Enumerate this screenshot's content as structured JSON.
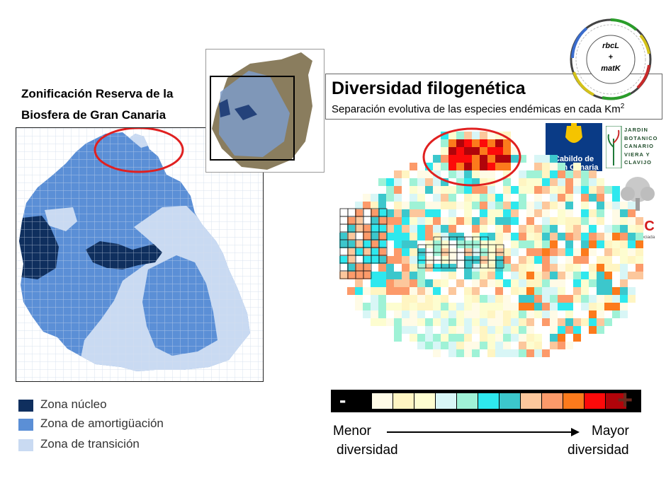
{
  "left_panel": {
    "title_line1": "Zonificación Reserva de la",
    "title_line2": "Biosfera de Gran Canaria"
  },
  "legend": [
    {
      "label": "Zona núcleo",
      "color": "#0f2f5e"
    },
    {
      "label": "Zona de amortigüación",
      "color": "#5b8fd6"
    },
    {
      "label": "Zona de transición",
      "color": "#c9daf2"
    }
  ],
  "right_panel": {
    "title": "Diversidad filogenética",
    "subtitle": "Separación evolutiva de las especies endémicas en cada Km",
    "subtitle_sup": "2"
  },
  "gene_label": {
    "line1": "rbcL",
    "line2": "+",
    "line3": "matK"
  },
  "logos": {
    "cabildo_line1": "Cabildo de",
    "cabildo_line2": "Gran Canaria",
    "jardin_lines": [
      "JARDIN",
      "BOTANICO",
      "CANARIO",
      "VIERA Y",
      "CLAVIJO"
    ],
    "csic": "CSIC",
    "csic_sub": "Unidad Asociada"
  },
  "colorbar": {
    "minus": "-",
    "plus": "+",
    "colors": [
      "#fffbe6",
      "#fff5c2",
      "#fdfdd0",
      "#d8f6f6",
      "#9ff2d6",
      "#2ee8ee",
      "#3cc7cc",
      "#fcc79c",
      "#fc9a6a",
      "#fc7a1c",
      "#fc0a0a",
      "#b0040a"
    ]
  },
  "scale_labels": {
    "min_line1": "Menor",
    "min_line2": "diversidad",
    "max_line1": "Mayor",
    "max_line2": "diversidad"
  },
  "colors": {
    "zone_core": "#0f2f5e",
    "zone_buffer": "#5b8fd6",
    "zone_transition": "#c9daf2",
    "highlight_ring": "#e02020"
  }
}
